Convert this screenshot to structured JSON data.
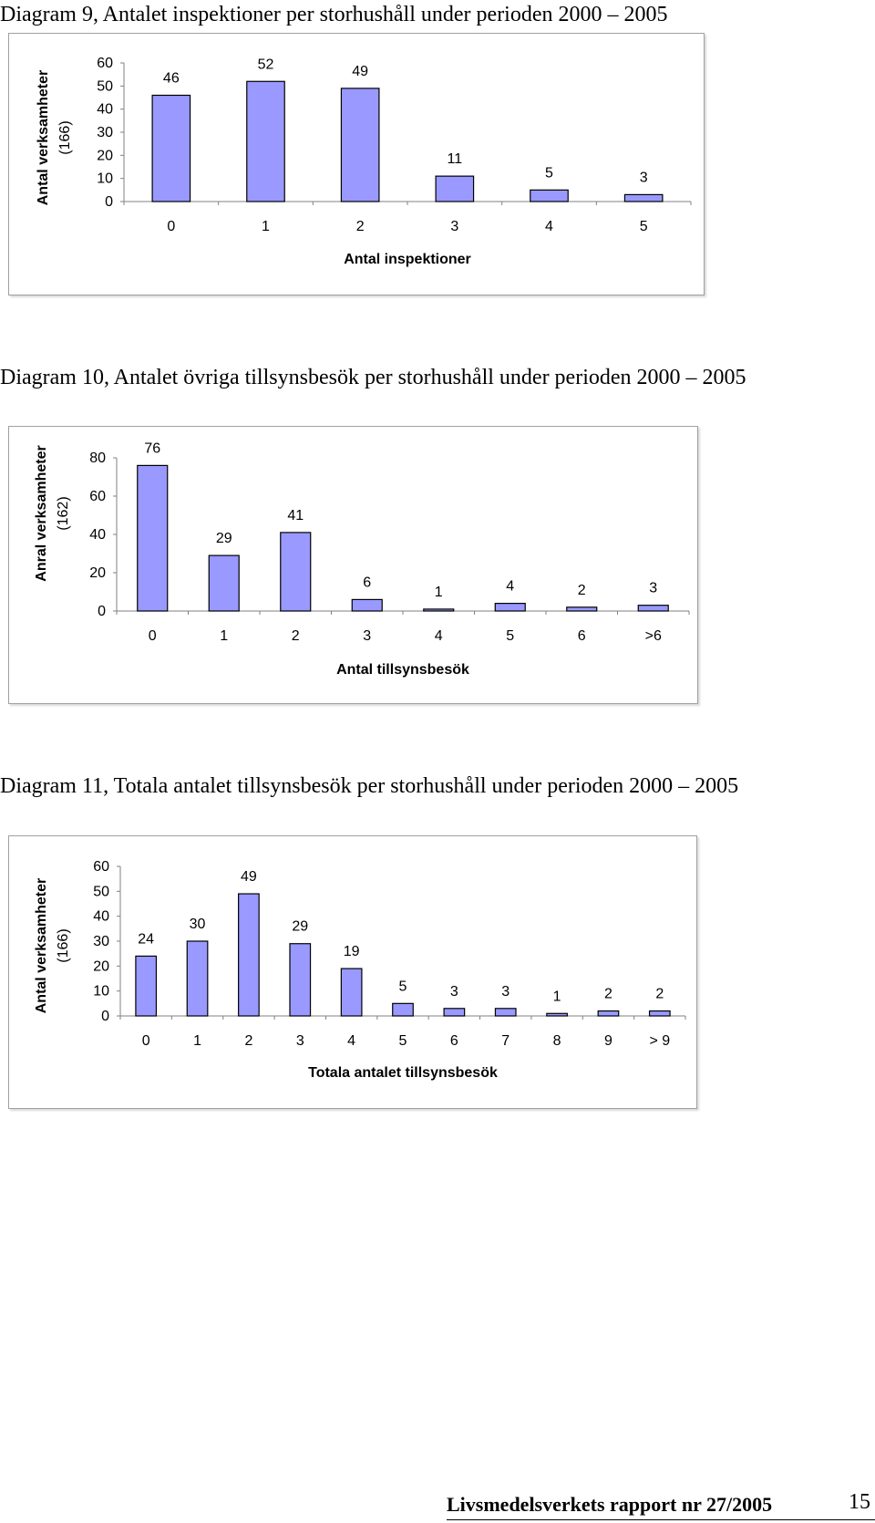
{
  "chart_data": [
    {
      "type": "bar",
      "title": "Diagram 9, Antalet inspektioner per storhushåll under perioden 2000 – 2005",
      "xlabel": "Antal inspektioner",
      "ylabel": [
        "Antal verksamheter",
        "(166)"
      ],
      "categories": [
        "0",
        "1",
        "2",
        "3",
        "4",
        "5"
      ],
      "values": [
        46,
        52,
        49,
        11,
        5,
        3
      ],
      "ylim": [
        0,
        60
      ],
      "yticks": [
        0,
        10,
        20,
        30,
        40,
        50,
        60
      ],
      "bar_color": "#9999ff",
      "grid": false
    },
    {
      "type": "bar",
      "title": "Diagram 10, Antalet övriga tillsynsbesök per storhushåll under perioden 2000 – 2005",
      "xlabel": "Antal tillsynsbesök",
      "ylabel": [
        "Anral verksamheter",
        "(162)"
      ],
      "categories": [
        "0",
        "1",
        "2",
        "3",
        "4",
        "5",
        "6",
        ">6"
      ],
      "values": [
        76,
        29,
        41,
        6,
        1,
        4,
        2,
        3
      ],
      "ylim": [
        0,
        80
      ],
      "yticks": [
        0,
        20,
        40,
        60,
        80
      ],
      "bar_color": "#9999ff",
      "grid": false
    },
    {
      "type": "bar",
      "title": "Diagram 11, Totala antalet tillsynsbesök per storhushåll under perioden 2000 – 2005",
      "xlabel": "Totala antalet tillsynsbesök",
      "ylabel": [
        "Antal verksamheter",
        "(166)"
      ],
      "categories": [
        "0",
        "1",
        "2",
        "3",
        "4",
        "5",
        "6",
        "7",
        "8",
        "9",
        "> 9"
      ],
      "values": [
        24,
        30,
        49,
        29,
        19,
        5,
        3,
        3,
        1,
        2,
        2
      ],
      "ylim": [
        0,
        60
      ],
      "yticks": [
        0,
        10,
        20,
        30,
        40,
        50,
        60
      ],
      "bar_color": "#9999ff",
      "grid": false
    }
  ],
  "footer": {
    "report": "Livsmedelsverkets rapport nr 27/2005",
    "page": "15"
  }
}
